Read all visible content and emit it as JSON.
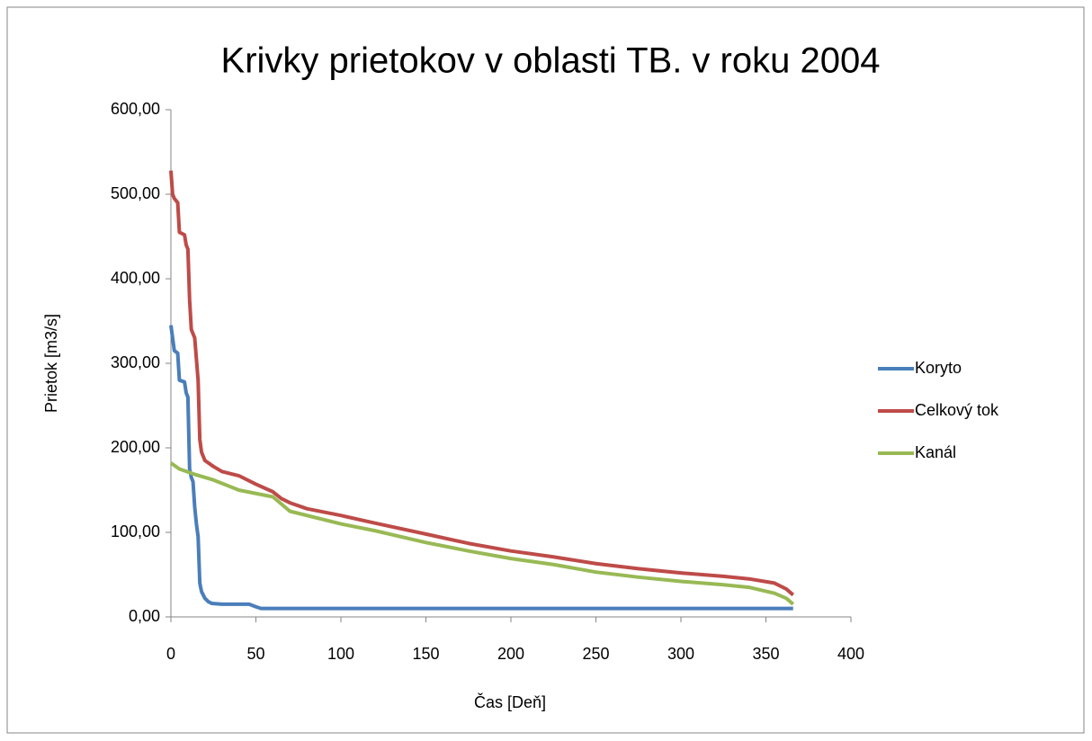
{
  "chart_data": {
    "type": "line",
    "title": "Krivky prietokov v oblasti TB. v roku 2004",
    "x_label": "Čas [Deň]",
    "y_label": "Prietok [m3/s]",
    "xlim": [
      0,
      400
    ],
    "xticks": [
      0,
      50,
      100,
      150,
      200,
      250,
      300,
      350,
      400
    ],
    "ylim": [
      0,
      600
    ],
    "yticks": [
      {
        "value": 0,
        "label": "0,00"
      },
      {
        "value": 100,
        "label": "100,00"
      },
      {
        "value": 200,
        "label": "200,00"
      },
      {
        "value": 300,
        "label": "300,00"
      },
      {
        "value": 400,
        "label": "400,00"
      },
      {
        "value": 500,
        "label": "500,00"
      },
      {
        "value": 600,
        "label": "600,00"
      }
    ],
    "legend": "right",
    "series": [
      {
        "name": "Koryto",
        "color": "#4a7ebb",
        "x": [
          0,
          1,
          2,
          4,
          5,
          8,
          9,
          10,
          11,
          12,
          13,
          14,
          15,
          16,
          17,
          18,
          20,
          22,
          24,
          30,
          46,
          50,
          53,
          366
        ],
        "values": [
          345,
          330,
          315,
          312,
          280,
          278,
          265,
          260,
          175,
          165,
          160,
          130,
          110,
          95,
          40,
          30,
          22,
          18,
          16,
          15,
          15,
          12,
          10,
          10
        ]
      },
      {
        "name": "Celkový tok",
        "color": "#be4b48",
        "x": [
          0,
          1,
          2,
          4,
          5,
          8,
          9,
          10,
          11,
          12,
          14,
          16,
          17,
          18,
          20,
          25,
          30,
          40,
          50,
          60,
          65,
          70,
          80,
          100,
          120,
          150,
          175,
          200,
          225,
          250,
          275,
          300,
          325,
          340,
          355,
          362,
          366
        ],
        "values": [
          528,
          500,
          495,
          490,
          455,
          452,
          440,
          435,
          375,
          340,
          330,
          280,
          210,
          195,
          185,
          178,
          172,
          167,
          157,
          148,
          140,
          135,
          128,
          120,
          111,
          98,
          87,
          78,
          71,
          63,
          57,
          52,
          48,
          45,
          40,
          33,
          26
        ]
      },
      {
        "name": "Kanál",
        "color": "#98b954",
        "x": [
          0,
          5,
          15,
          25,
          40,
          60,
          70,
          100,
          120,
          150,
          175,
          200,
          225,
          250,
          275,
          300,
          325,
          340,
          355,
          362,
          366
        ],
        "values": [
          182,
          175,
          168,
          162,
          150,
          142,
          125,
          110,
          102,
          88,
          78,
          69,
          62,
          53,
          47,
          42,
          38,
          35,
          28,
          22,
          15
        ]
      }
    ]
  }
}
